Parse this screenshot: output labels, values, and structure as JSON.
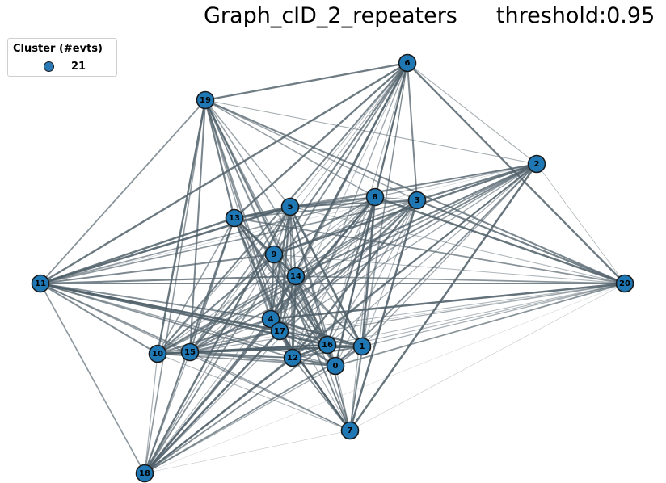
{
  "title": "Graph_cID_2_repeaters",
  "threshold_label": "threshold:0.95",
  "legend": {
    "title": "Cluster (#evts)",
    "entry": "21",
    "color": "#1f77b4"
  },
  "nodes": [
    "0",
    "1",
    "2",
    "3",
    "4",
    "5",
    "6",
    "7",
    "8",
    "9",
    "10",
    "11",
    "12",
    "13",
    "14",
    "15",
    "16",
    "17",
    "18",
    "19",
    "20"
  ]
}
